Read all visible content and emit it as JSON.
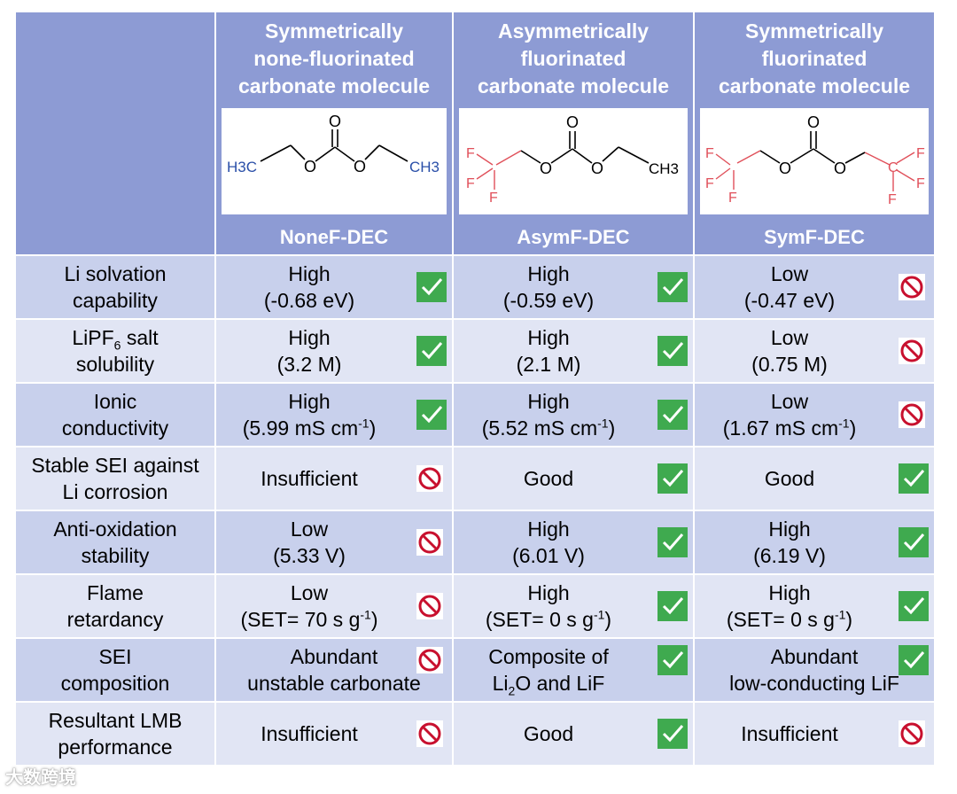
{
  "header": {
    "columns": [
      {
        "title_lines": [
          "Symmetrically",
          "none-fluorinated",
          "carbonate molecule"
        ],
        "name": "NoneF-DEC"
      },
      {
        "title_lines": [
          "Asymmetrically",
          "fluorinated",
          "carbonate molecule"
        ],
        "name": "AsymF-DEC"
      },
      {
        "title_lines": [
          "Symmetrically",
          "fluorinated",
          "carbonate molecule"
        ],
        "name": "SymF-DEC"
      }
    ]
  },
  "molecules": {
    "nonef": {
      "left": "H3C",
      "right": "CH3",
      "o_top": "O",
      "o_left": "O",
      "o_right": "O"
    },
    "asymf": {
      "right": "CH3",
      "f": "F",
      "o_top": "O",
      "o_left": "O",
      "o_right": "O"
    },
    "symf": {
      "f": "F",
      "c": "C",
      "o_top": "O",
      "o_left": "O",
      "o_right": "O"
    }
  },
  "rows": [
    {
      "label": [
        "Li solvation",
        "capability"
      ],
      "cells": [
        {
          "lines": [
            "High",
            "(-0.68 eV)"
          ],
          "status": "check"
        },
        {
          "lines": [
            "High",
            "(-0.59 eV)"
          ],
          "status": "check"
        },
        {
          "lines": [
            "Low",
            "(-0.47 eV)"
          ],
          "status": "no"
        }
      ]
    },
    {
      "label": [
        "LiPF",
        "6",
        " salt",
        "solubility"
      ],
      "cells": [
        {
          "lines": [
            "High",
            "(3.2 M)"
          ],
          "status": "check"
        },
        {
          "lines": [
            "High",
            "(2.1 M)"
          ],
          "status": "check"
        },
        {
          "lines": [
            "Low",
            "(0.75 M)"
          ],
          "status": "no"
        }
      ]
    },
    {
      "label": [
        "Ionic",
        "conductivity"
      ],
      "cells": [
        {
          "lines": [
            "High",
            "(5.99 mS cm",
            "-1",
            ")"
          ],
          "status": "check"
        },
        {
          "lines": [
            "High",
            "(5.52 mS cm",
            "-1",
            ")"
          ],
          "status": "check"
        },
        {
          "lines": [
            "Low",
            "(1.67 mS cm",
            "-1",
            ")"
          ],
          "status": "no"
        }
      ]
    },
    {
      "label": [
        "Stable SEI against",
        "Li corrosion"
      ],
      "cells": [
        {
          "lines": [
            "Insufficient"
          ],
          "status": "no"
        },
        {
          "lines": [
            "Good"
          ],
          "status": "check"
        },
        {
          "lines": [
            "Good"
          ],
          "status": "check"
        }
      ]
    },
    {
      "label": [
        "Anti-oxidation",
        "stability"
      ],
      "cells": [
        {
          "lines": [
            "Low",
            "(5.33 V)"
          ],
          "status": "no"
        },
        {
          "lines": [
            "High",
            "(6.01 V)"
          ],
          "status": "check"
        },
        {
          "lines": [
            "High",
            "(6.19 V)"
          ],
          "status": "check"
        }
      ]
    },
    {
      "label": [
        "Flame",
        "retardancy"
      ],
      "cells": [
        {
          "lines": [
            "Low",
            "(SET= 70 s g",
            "-1",
            ")"
          ],
          "status": "no"
        },
        {
          "lines": [
            "High",
            "(SET= 0 s g",
            "-1",
            ")"
          ],
          "status": "check"
        },
        {
          "lines": [
            "High",
            "(SET= 0 s g",
            "-1",
            ")"
          ],
          "status": "check"
        }
      ]
    },
    {
      "label": [
        "SEI",
        "composition"
      ],
      "cells": [
        {
          "lines": [
            "Abundant",
            "unstable carbonate"
          ],
          "status": "no"
        },
        {
          "lines": [
            "Composite of",
            "Li",
            "2",
            "O and LiF"
          ],
          "status": "check"
        },
        {
          "lines": [
            "Abundant",
            "low-conducting LiF"
          ],
          "status": "check"
        }
      ]
    },
    {
      "label": [
        "Resultant LMB",
        "performance"
      ],
      "cells": [
        {
          "lines": [
            "Insufficient"
          ],
          "status": "no"
        },
        {
          "lines": [
            "Good"
          ],
          "status": "check"
        },
        {
          "lines": [
            "Insufficient"
          ],
          "status": "no"
        }
      ]
    }
  ],
  "watermark": "大数跨境",
  "colors": {
    "header": "#8d9bd4",
    "row_a": "#c8d0ec",
    "row_b": "#e1e5f4",
    "check": "#3faa4f",
    "no": "#c8102e",
    "blue_mol": "#2a4fa8",
    "red_mol": "#e0505a"
  }
}
